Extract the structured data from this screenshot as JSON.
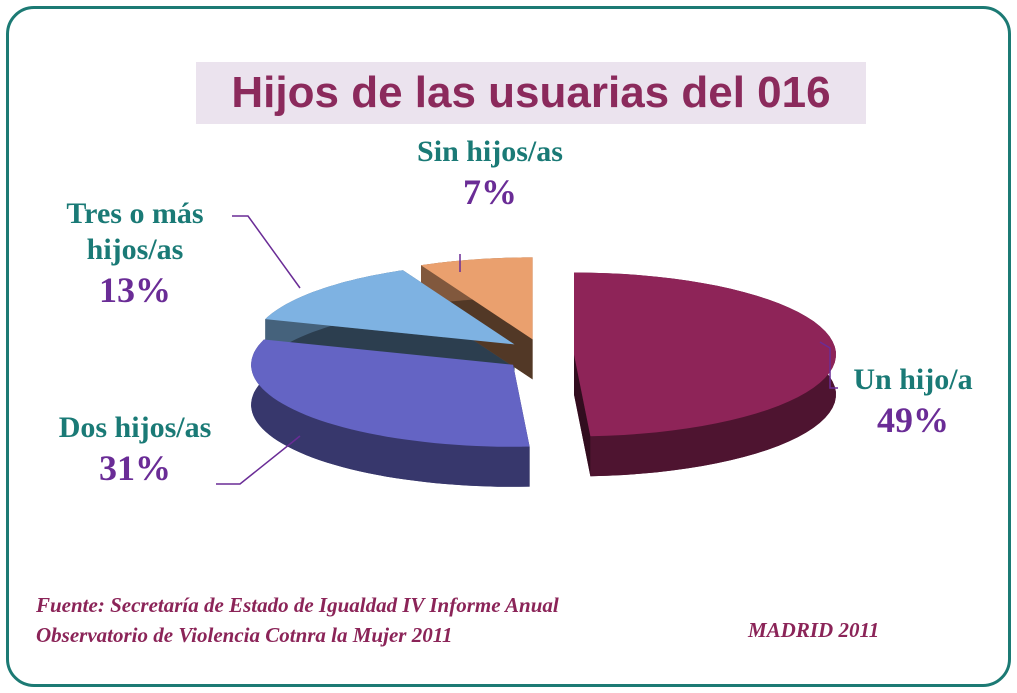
{
  "chart_data": {
    "type": "pie",
    "title": "Hijos de las usuarias del 016",
    "categories": [
      "Un hijo/a",
      "Dos hijos/as",
      "Tres o más hijos/as",
      "Sin hijos/as"
    ],
    "values": [
      49,
      31,
      13,
      7
    ],
    "value_labels": [
      "49%",
      "31%",
      "13%",
      "7%"
    ],
    "colors": [
      "#8e2458",
      "#6464c4",
      "#7eb2e2",
      "#eaa06e"
    ],
    "source": "Fuente: Secretaría de Estado de Igualdad IV Informe Anual Observatorio de Violencia Cotnra la Mujer 2011",
    "place_date": "MADRID 2011"
  }
}
